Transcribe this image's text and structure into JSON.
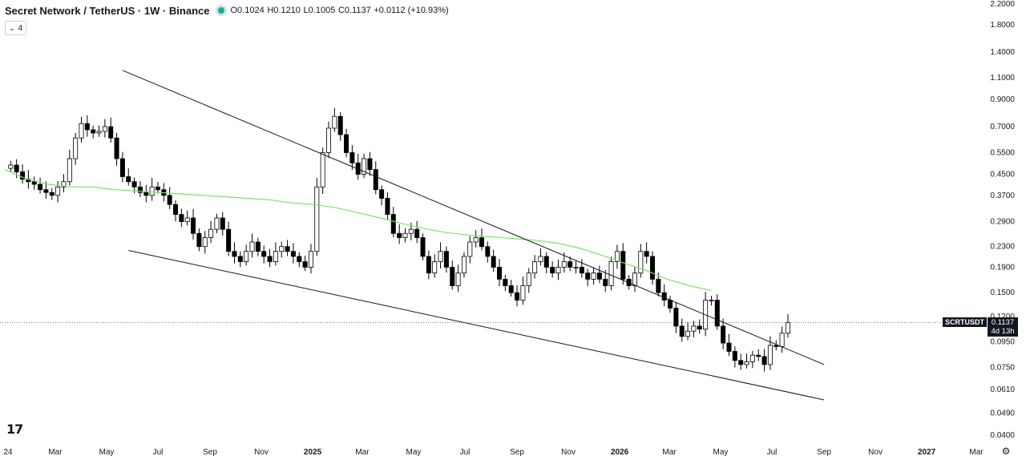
{
  "header": {
    "title": "Secret Network / TetherUS · 1W · Binance",
    "open": "O0.1024",
    "high": "H0.1210",
    "low": "L0.1005",
    "close": "C0.1137",
    "change": "+0.0112 (+10.93%)"
  },
  "indicator_toggle": {
    "icon": "chevron-down-icon",
    "count": "4"
  },
  "price_tag": {
    "symbol": "SCRTUSDT",
    "price": "0.1137",
    "countdown": "4d 13h"
  },
  "logo_text": "17",
  "colors": {
    "up": "#ffffff",
    "down": "#000000",
    "ma": "#7ee06b",
    "trend": "#131722"
  },
  "chart_data": {
    "type": "candlestick",
    "scale": "log",
    "ylim": [
      0.04,
      2.2
    ],
    "y_ticks": [
      "2.2000",
      "1.8000",
      "1.4000",
      "1.1000",
      "0.9000",
      "0.7000",
      "0.5500",
      "0.4500",
      "0.3700",
      "0.2900",
      "0.2300",
      "0.1900",
      "0.1500",
      "0.1200",
      "0.0950",
      "0.0750",
      "0.0610",
      "0.0490",
      "0.0400"
    ],
    "x_ticks": [
      "24",
      "Mar",
      "May",
      "Jul",
      "Sep",
      "Nov",
      "2025",
      "Mar",
      "May",
      "Jul",
      "Sep",
      "Nov",
      "2026",
      "Mar",
      "May",
      "Jul",
      "Sep",
      "Nov",
      "2027",
      "Mar"
    ],
    "x_start": "2024-01-01",
    "x_end": "2027-03-01",
    "weekly_closes": [
      0.49,
      0.46,
      0.43,
      0.42,
      0.41,
      0.39,
      0.38,
      0.37,
      0.4,
      0.42,
      0.52,
      0.63,
      0.72,
      0.68,
      0.66,
      0.67,
      0.7,
      0.63,
      0.52,
      0.44,
      0.42,
      0.4,
      0.38,
      0.37,
      0.4,
      0.39,
      0.37,
      0.34,
      0.31,
      0.29,
      0.3,
      0.26,
      0.23,
      0.25,
      0.27,
      0.3,
      0.27,
      0.22,
      0.21,
      0.2,
      0.22,
      0.24,
      0.22,
      0.21,
      0.2,
      0.22,
      0.23,
      0.22,
      0.21,
      0.2,
      0.19,
      0.22,
      0.4,
      0.55,
      0.69,
      0.77,
      0.65,
      0.55,
      0.5,
      0.45,
      0.52,
      0.47,
      0.39,
      0.36,
      0.31,
      0.26,
      0.25,
      0.26,
      0.27,
      0.25,
      0.21,
      0.18,
      0.2,
      0.22,
      0.19,
      0.16,
      0.18,
      0.21,
      0.24,
      0.25,
      0.23,
      0.21,
      0.19,
      0.17,
      0.16,
      0.15,
      0.14,
      0.16,
      0.18,
      0.2,
      0.21,
      0.19,
      0.18,
      0.19,
      0.2,
      0.19,
      0.19,
      0.18,
      0.17,
      0.18,
      0.17,
      0.16,
      0.2,
      0.22,
      0.17,
      0.16,
      0.18,
      0.22,
      0.21,
      0.17,
      0.15,
      0.14,
      0.13,
      0.11,
      0.1,
      0.105,
      0.11,
      0.107,
      0.14,
      0.14,
      0.11,
      0.094,
      0.087,
      0.08,
      0.077,
      0.079,
      0.084,
      0.083,
      0.077,
      0.092,
      0.091,
      0.103,
      0.1137
    ],
    "series": [
      {
        "name": "MA",
        "type": "line",
        "values": [
          0.47,
          0.43,
          0.41,
          0.4,
          0.4,
          0.39,
          0.385,
          0.38,
          0.375,
          0.37,
          0.365,
          0.36,
          0.355,
          0.345,
          0.34,
          0.33,
          0.315,
          0.3,
          0.285,
          0.272,
          0.262,
          0.256,
          0.252,
          0.248,
          0.244,
          0.238,
          0.227,
          0.213,
          0.198,
          0.185,
          0.17,
          0.16,
          0.153
        ]
      }
    ],
    "trendlines": [
      {
        "start": [
          "2024-05-20",
          1.18
        ],
        "end": [
          "2026-09-01",
          0.077
        ]
      },
      {
        "start": [
          "2024-05-27",
          0.222
        ],
        "end": [
          "2026-09-01",
          0.0555
        ]
      }
    ],
    "last_price_line": 0.1137
  }
}
